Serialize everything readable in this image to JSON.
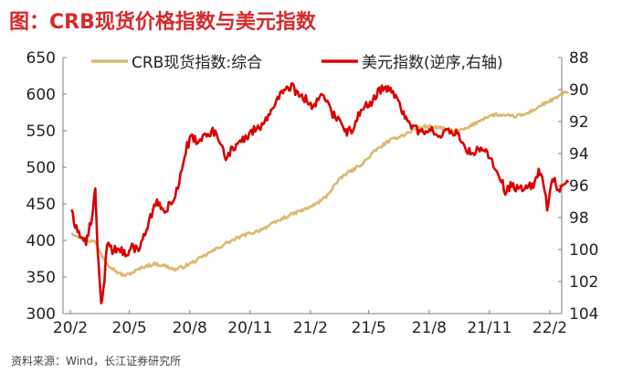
{
  "figure": {
    "title": "图：CRB现货价格指数与美元指数",
    "source": "资料来源：Wind，长江证券研究所",
    "colors": {
      "title": "#d62a2a",
      "crb": "#dcb870",
      "usd": "#d80000",
      "text": "#222222",
      "source": "#444444"
    }
  },
  "chart_data": {
    "type": "line",
    "x_ticks": [
      "20/2",
      "20/5",
      "20/8",
      "20/11",
      "21/2",
      "21/5",
      "21/8",
      "21/11",
      "22/2"
    ],
    "y_left": {
      "ticks": [
        300,
        350,
        400,
        450,
        500,
        550,
        600,
        650
      ],
      "range": [
        300,
        650
      ]
    },
    "y_right": {
      "ticks": [
        88,
        90,
        92,
        94,
        96,
        98,
        100,
        102,
        104
      ],
      "range": [
        88,
        104
      ],
      "inverted": true
    },
    "legend_position": "top",
    "grid": false,
    "series": [
      {
        "name": "CRB现货指数:综合",
        "axis": "left",
        "color": "#dcb870",
        "points": [
          [
            "2020-02-03",
            410
          ],
          [
            "2020-02-15",
            405
          ],
          [
            "2020-02-28",
            400
          ],
          [
            "2020-03-10",
            398
          ],
          [
            "2020-03-20",
            380
          ],
          [
            "2020-04-01",
            365
          ],
          [
            "2020-04-15",
            355
          ],
          [
            "2020-04-25",
            352
          ],
          [
            "2020-05-10",
            358
          ],
          [
            "2020-05-25",
            365
          ],
          [
            "2020-06-10",
            368
          ],
          [
            "2020-06-25",
            365
          ],
          [
            "2020-07-10",
            360
          ],
          [
            "2020-07-25",
            365
          ],
          [
            "2020-08-10",
            372
          ],
          [
            "2020-08-25",
            380
          ],
          [
            "2020-09-10",
            388
          ],
          [
            "2020-09-25",
            396
          ],
          [
            "2020-10-10",
            402
          ],
          [
            "2020-10-25",
            408
          ],
          [
            "2020-11-10",
            412
          ],
          [
            "2020-11-25",
            418
          ],
          [
            "2020-12-10",
            425
          ],
          [
            "2020-12-25",
            432
          ],
          [
            "2021-01-10",
            438
          ],
          [
            "2021-01-25",
            443
          ],
          [
            "2021-02-10",
            450
          ],
          [
            "2021-02-25",
            460
          ],
          [
            "2021-03-10",
            476
          ],
          [
            "2021-03-25",
            490
          ],
          [
            "2021-04-10",
            498
          ],
          [
            "2021-04-25",
            508
          ],
          [
            "2021-05-10",
            522
          ],
          [
            "2021-05-25",
            532
          ],
          [
            "2021-06-10",
            540
          ],
          [
            "2021-06-25",
            545
          ],
          [
            "2021-07-10",
            552
          ],
          [
            "2021-07-25",
            556
          ],
          [
            "2021-08-10",
            555
          ],
          [
            "2021-08-25",
            552
          ],
          [
            "2021-09-10",
            550
          ],
          [
            "2021-09-25",
            552
          ],
          [
            "2021-10-10",
            560
          ],
          [
            "2021-10-25",
            568
          ],
          [
            "2021-11-10",
            572
          ],
          [
            "2021-11-25",
            570
          ],
          [
            "2021-12-10",
            570
          ],
          [
            "2021-12-25",
            572
          ],
          [
            "2022-01-10",
            580
          ],
          [
            "2022-01-25",
            588
          ],
          [
            "2022-02-10",
            594
          ],
          [
            "2022-02-22",
            602
          ],
          [
            "2022-03-01",
            603
          ]
        ]
      },
      {
        "name": "美元指数(逆序,右轴)",
        "axis": "right",
        "color": "#d80000",
        "points": [
          [
            "2020-02-03",
            97.5
          ],
          [
            "2020-02-12",
            99.0
          ],
          [
            "2020-02-25",
            99.5
          ],
          [
            "2020-03-05",
            98.0
          ],
          [
            "2020-03-10",
            96.0
          ],
          [
            "2020-03-12",
            98.5
          ],
          [
            "2020-03-15",
            101.0
          ],
          [
            "2020-03-19",
            103.2
          ],
          [
            "2020-03-24",
            102.0
          ],
          [
            "2020-03-28",
            99.5
          ],
          [
            "2020-04-05",
            100.2
          ],
          [
            "2020-04-15",
            99.8
          ],
          [
            "2020-04-25",
            100.3
          ],
          [
            "2020-05-05",
            99.8
          ],
          [
            "2020-05-15",
            100.0
          ],
          [
            "2020-05-25",
            99.0
          ],
          [
            "2020-05-31",
            98.3
          ],
          [
            "2020-06-10",
            97.0
          ],
          [
            "2020-06-20",
            97.5
          ],
          [
            "2020-06-30",
            97.3
          ],
          [
            "2020-07-10",
            96.7
          ],
          [
            "2020-07-20",
            95.0
          ],
          [
            "2020-07-28",
            93.5
          ],
          [
            "2020-08-05",
            93.0
          ],
          [
            "2020-08-15",
            93.3
          ],
          [
            "2020-08-25",
            92.8
          ],
          [
            "2020-09-05",
            92.6
          ],
          [
            "2020-09-15",
            93.2
          ],
          [
            "2020-09-25",
            94.4
          ],
          [
            "2020-10-05",
            93.6
          ],
          [
            "2020-10-15",
            93.5
          ],
          [
            "2020-10-25",
            93.0
          ],
          [
            "2020-11-05",
            92.6
          ],
          [
            "2020-11-15",
            92.4
          ],
          [
            "2020-11-25",
            92.0
          ],
          [
            "2020-12-05",
            91.0
          ],
          [
            "2020-12-15",
            90.5
          ],
          [
            "2020-12-25",
            90.1
          ],
          [
            "2021-01-05",
            89.8
          ],
          [
            "2021-01-15",
            90.5
          ],
          [
            "2021-01-25",
            90.6
          ],
          [
            "2021-02-05",
            91.0
          ],
          [
            "2021-02-15",
            90.5
          ],
          [
            "2021-02-25",
            90.6
          ],
          [
            "2021-03-05",
            91.5
          ],
          [
            "2021-03-15",
            91.8
          ],
          [
            "2021-03-25",
            92.7
          ],
          [
            "2021-04-05",
            92.5
          ],
          [
            "2021-04-15",
            91.7
          ],
          [
            "2021-04-25",
            91.0
          ],
          [
            "2021-05-05",
            90.8
          ],
          [
            "2021-05-15",
            90.2
          ],
          [
            "2021-05-25",
            89.9
          ],
          [
            "2021-06-05",
            90.1
          ],
          [
            "2021-06-15",
            90.5
          ],
          [
            "2021-06-25",
            91.9
          ],
          [
            "2021-07-05",
            92.2
          ],
          [
            "2021-07-15",
            92.6
          ],
          [
            "2021-07-25",
            92.7
          ],
          [
            "2021-08-05",
            92.4
          ],
          [
            "2021-08-15",
            93.0
          ],
          [
            "2021-08-25",
            92.7
          ],
          [
            "2021-09-05",
            92.6
          ],
          [
            "2021-09-15",
            92.9
          ],
          [
            "2021-09-25",
            93.6
          ],
          [
            "2021-10-05",
            94.0
          ],
          [
            "2021-10-15",
            93.8
          ],
          [
            "2021-10-25",
            93.8
          ],
          [
            "2021-11-05",
            94.4
          ],
          [
            "2021-11-15",
            95.2
          ],
          [
            "2021-11-25",
            96.3
          ],
          [
            "2021-12-05",
            96.0
          ],
          [
            "2021-12-15",
            96.2
          ],
          [
            "2021-12-25",
            96.0
          ],
          [
            "2022-01-05",
            96.1
          ],
          [
            "2022-01-15",
            95.2
          ],
          [
            "2022-01-22",
            95.6
          ],
          [
            "2022-01-28",
            97.3
          ],
          [
            "2022-02-05",
            95.5
          ],
          [
            "2022-02-12",
            96.0
          ],
          [
            "2022-02-20",
            96.2
          ],
          [
            "2022-03-01",
            95.8
          ]
        ]
      }
    ]
  }
}
